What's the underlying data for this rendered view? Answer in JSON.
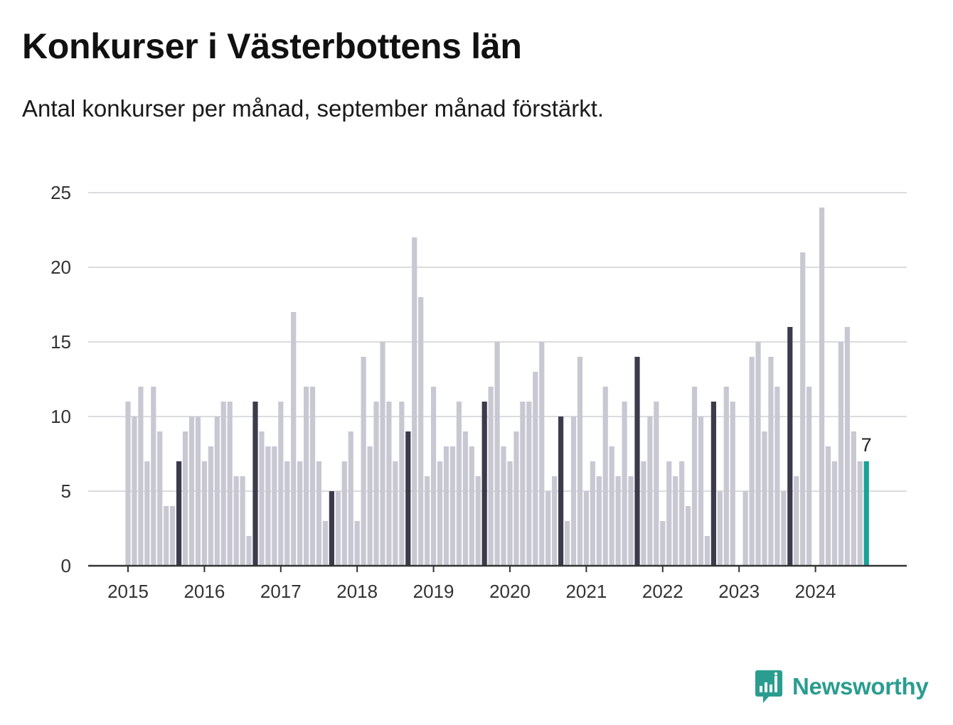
{
  "title": "Konkurser i Västerbottens län",
  "subtitle": "Antal konkurser per månad, september månad förstärkt.",
  "brand": {
    "name": "Newsworthy",
    "icon": "newsworthy-logo-icon",
    "color": "#2a9d90"
  },
  "colors": {
    "default": "#c8c8d3",
    "highlight": "#3b3b4c",
    "latest": "#17a398",
    "grid": "#dcdce0",
    "axis": "#333333"
  },
  "chart_data": {
    "type": "bar",
    "ylim": [
      0,
      25
    ],
    "yticks": [
      0,
      5,
      10,
      15,
      20,
      25
    ],
    "xticks": [
      "2015",
      "2016",
      "2017",
      "2018",
      "2019",
      "2020",
      "2021",
      "2022",
      "2023",
      "2024"
    ],
    "grid": true,
    "legend": "none",
    "start": "2015-01",
    "highlight_month": 9,
    "latest_label": "7",
    "values": [
      11,
      10,
      12,
      7,
      12,
      9,
      4,
      4,
      7,
      9,
      10,
      10,
      7,
      8,
      10,
      11,
      11,
      6,
      6,
      2,
      11,
      9,
      8,
      8,
      11,
      7,
      17,
      7,
      12,
      12,
      7,
      3,
      5,
      5,
      7,
      9,
      3,
      14,
      8,
      11,
      15,
      11,
      7,
      11,
      9,
      22,
      18,
      6,
      12,
      7,
      8,
      8,
      11,
      9,
      8,
      6,
      11,
      12,
      15,
      8,
      7,
      9,
      11,
      11,
      13,
      15,
      5,
      6,
      10,
      3,
      10,
      14,
      5,
      7,
      6,
      12,
      8,
      6,
      11,
      6,
      14,
      7,
      10,
      11,
      3,
      7,
      6,
      7,
      4,
      12,
      10,
      2,
      11,
      5,
      12,
      11,
      0,
      5,
      14,
      15,
      9,
      14,
      12,
      5,
      16,
      6,
      21,
      12,
      0,
      24,
      8,
      7,
      15,
      16,
      9,
      7,
      7
    ]
  }
}
